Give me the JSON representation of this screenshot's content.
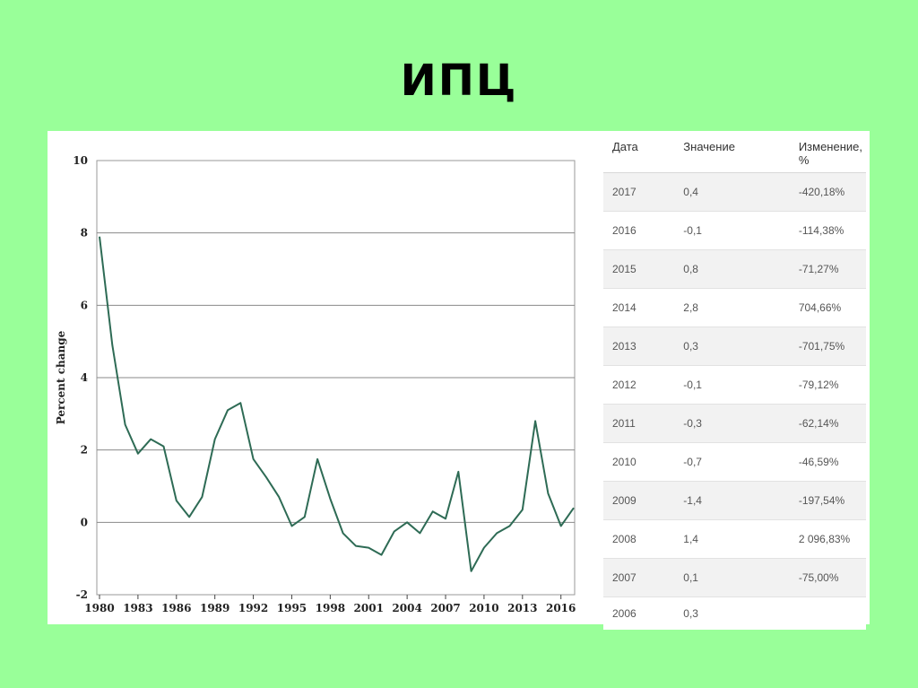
{
  "slide": {
    "title": "ИПЦ"
  },
  "chart_data": {
    "type": "line",
    "title": "",
    "xlabel": "",
    "ylabel": "Percent change",
    "xlim": [
      1980,
      2017
    ],
    "ylim": [
      -2,
      10
    ],
    "y_ticks": [
      10,
      8,
      6,
      4,
      2,
      0,
      -2
    ],
    "x_ticks": [
      1980,
      1983,
      1986,
      1989,
      1992,
      1995,
      1998,
      2001,
      2004,
      2007,
      2010,
      2013,
      2016
    ],
    "grid": "horizontal",
    "series": [
      {
        "color": "#2e6b55",
        "x": [
          1980,
          1981,
          1982,
          1983,
          1984,
          1985,
          1986,
          1987,
          1988,
          1989,
          1990,
          1991,
          1992,
          1993,
          1994,
          1995,
          1996,
          1997,
          1998,
          1999,
          2000,
          2001,
          2002,
          2003,
          2004,
          2005,
          2006,
          2007,
          2008,
          2009,
          2010,
          2011,
          2012,
          2013,
          2014,
          2015,
          2016,
          2017
        ],
        "values": [
          7.9,
          4.9,
          2.7,
          1.9,
          2.3,
          2.1,
          0.6,
          0.15,
          0.7,
          2.3,
          3.1,
          3.3,
          1.75,
          1.25,
          0.7,
          -0.1,
          0.15,
          1.75,
          0.65,
          -0.3,
          -0.65,
          -0.7,
          -0.9,
          -0.25,
          0.0,
          -0.3,
          0.3,
          0.1,
          1.4,
          -1.35,
          -0.7,
          -0.3,
          -0.1,
          0.35,
          2.8,
          0.8,
          -0.1,
          0.4
        ]
      }
    ]
  },
  "table": {
    "headers": {
      "date": "Дата",
      "value": "Значение",
      "change": "Изменение, %"
    },
    "rows": [
      {
        "date": "2017",
        "value": "0,4",
        "change": "-420,18%"
      },
      {
        "date": "2016",
        "value": "-0,1",
        "change": "-114,38%"
      },
      {
        "date": "2015",
        "value": "0,8",
        "change": "-71,27%"
      },
      {
        "date": "2014",
        "value": "2,8",
        "change": "704,66%"
      },
      {
        "date": "2013",
        "value": "0,3",
        "change": "-701,75%"
      },
      {
        "date": "2012",
        "value": "-0,1",
        "change": "-79,12%"
      },
      {
        "date": "2011",
        "value": "-0,3",
        "change": "-62,14%"
      },
      {
        "date": "2010",
        "value": "-0,7",
        "change": "-46,59%"
      },
      {
        "date": "2009",
        "value": "-1,4",
        "change": "-197,54%"
      },
      {
        "date": "2008",
        "value": "1,4",
        "change": "2 096,83%"
      },
      {
        "date": "2007",
        "value": "0,1",
        "change": "-75,00%"
      },
      {
        "date": "2006",
        "value": "0,3",
        "change": ""
      }
    ]
  }
}
